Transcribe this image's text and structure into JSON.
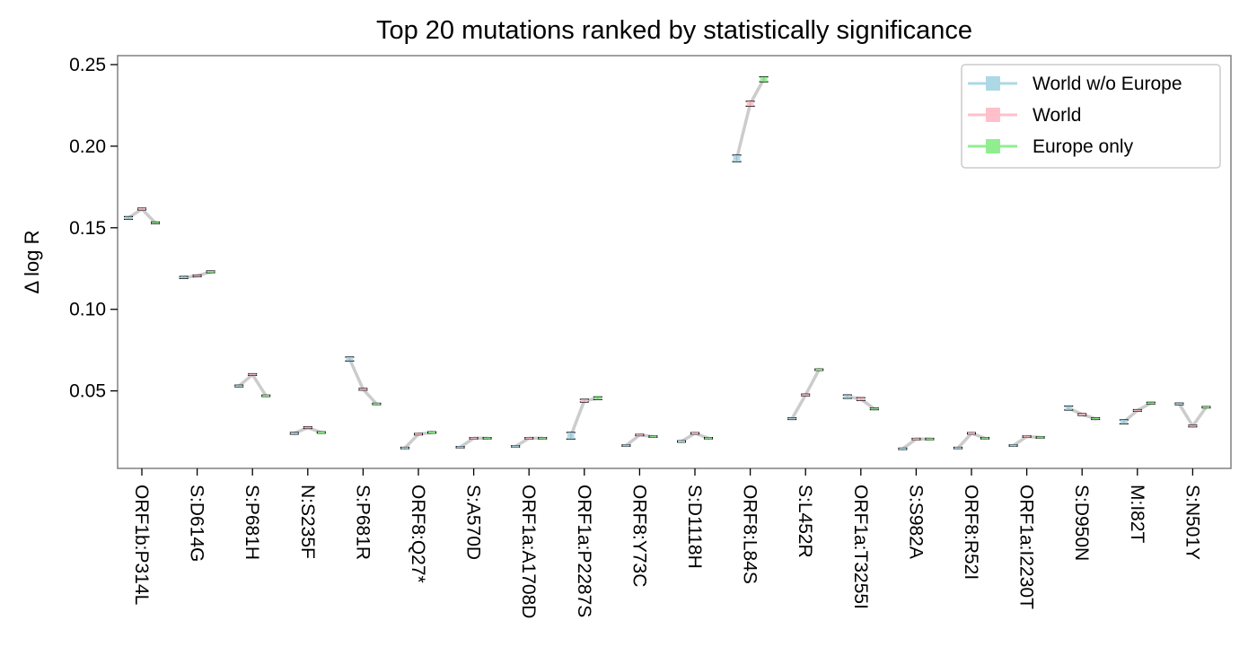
{
  "chart_data": {
    "type": "line",
    "title": "Top 20 mutations ranked by statistically significance",
    "xlabel": "",
    "ylabel": "Δ log R",
    "ylim": [
      0.0025,
      0.2555
    ],
    "yticks": [
      0.05,
      0.1,
      0.15,
      0.2,
      0.25
    ],
    "ytick_labels": [
      "0.05",
      "0.10",
      "0.15",
      "0.20",
      "0.25"
    ],
    "grid": false,
    "legend": "top-right",
    "categories": [
      "ORF1b:P314L",
      "S:D614G",
      "S:P681H",
      "N:S235F",
      "S:P681R",
      "ORF8:Q27*",
      "S:A570D",
      "ORF1a:A1708D",
      "ORF1a:P2287S",
      "ORF8:Y73C",
      "S:D1118H",
      "ORF8:L84S",
      "S:L452R",
      "ORF1a:T3255I",
      "S:S982A",
      "ORF8:R52I",
      "ORF1a:I2230T",
      "S:D950N",
      "M:I82T",
      "S:N501Y"
    ],
    "series": [
      {
        "name": "World w/o Europe",
        "color": "#add8e6",
        "values": [
          0.156,
          0.1195,
          0.053,
          0.024,
          0.0695,
          0.015,
          0.0155,
          0.016,
          0.0225,
          0.0165,
          0.019,
          0.1925,
          0.033,
          0.0465,
          0.0145,
          0.015,
          0.0165,
          0.0395,
          0.031,
          0.042
        ],
        "errors": [
          0.0008,
          0.0006,
          0.0005,
          0.0005,
          0.0012,
          0.0004,
          0.0004,
          0.0004,
          0.002,
          0.0004,
          0.0004,
          0.002,
          0.0005,
          0.001,
          0.0004,
          0.0004,
          0.0004,
          0.0012,
          0.0012,
          0.0005
        ]
      },
      {
        "name": "World",
        "color": "#ffc0cb",
        "values": [
          0.1615,
          0.1205,
          0.06,
          0.0275,
          0.051,
          0.0235,
          0.021,
          0.021,
          0.044,
          0.023,
          0.024,
          0.226,
          0.0475,
          0.045,
          0.0205,
          0.024,
          0.022,
          0.0355,
          0.038,
          0.0285
        ],
        "errors": [
          0.0005,
          0.0005,
          0.0005,
          0.0005,
          0.0005,
          0.0004,
          0.0004,
          0.0004,
          0.0008,
          0.0004,
          0.0004,
          0.0015,
          0.0005,
          0.0008,
          0.0004,
          0.0004,
          0.0004,
          0.0005,
          0.0005,
          0.0005
        ]
      },
      {
        "name": "Europe only",
        "color": "#90ee90",
        "values": [
          0.153,
          0.123,
          0.047,
          0.0245,
          0.042,
          0.0245,
          0.021,
          0.021,
          0.0455,
          0.022,
          0.021,
          0.241,
          0.063,
          0.039,
          0.0205,
          0.021,
          0.0215,
          0.033,
          0.0425,
          0.04
        ],
        "errors": [
          0.0005,
          0.0005,
          0.0004,
          0.0004,
          0.0004,
          0.0004,
          0.0004,
          0.0004,
          0.0008,
          0.0004,
          0.0004,
          0.0015,
          0.0004,
          0.0005,
          0.0004,
          0.0004,
          0.0004,
          0.0005,
          0.0005,
          0.0004
        ]
      }
    ],
    "connector_color": "#cccccc"
  }
}
